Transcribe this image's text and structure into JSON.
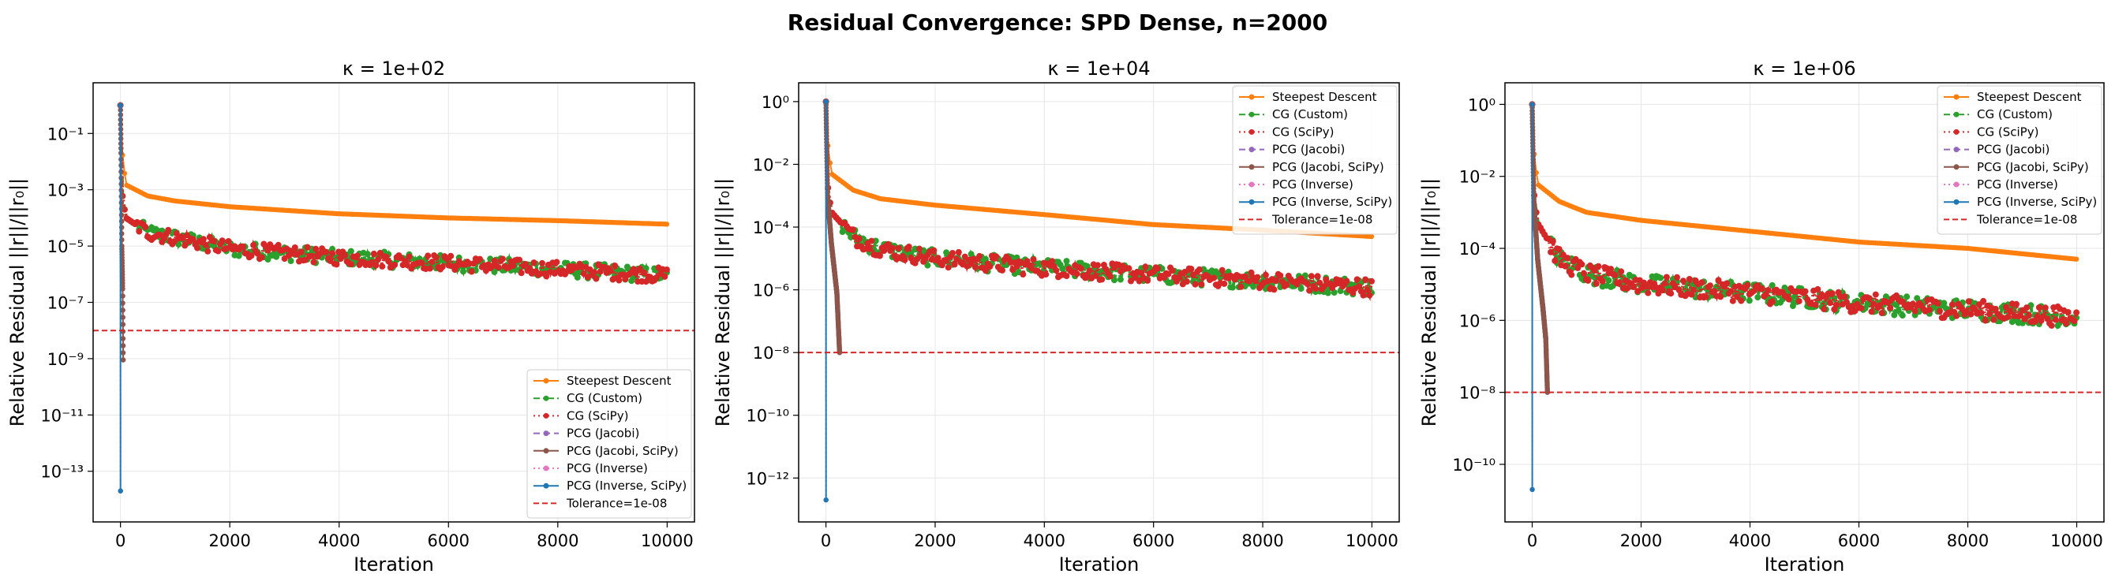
{
  "title": "Residual Convergence: SPD Dense, n=2000",
  "colors": {
    "steepest": "#ff7f0e",
    "cg_custom": "#2ca02c",
    "cg_scipy": "#d62728",
    "pcg_jacobi": "#9467bd",
    "pcg_jacobi_scipy": "#8c564b",
    "pcg_inverse": "#e377c2",
    "pcg_inverse_scipy": "#1f77b4",
    "tolerance": "#d62728",
    "grid": "#e6e6e6"
  },
  "chart_data": [
    {
      "type": "line",
      "title": "κ = 1e+02",
      "xlabel": "Iteration",
      "ylabel": "Relative Residual ||r||/||r₀||",
      "yscale": "log",
      "xlim": [
        -500,
        10500
      ],
      "ylim_log10": [
        -14.8,
        0.8
      ],
      "x_ticks": [
        0,
        2000,
        4000,
        6000,
        8000,
        10000
      ],
      "y_ticks_exp": [
        -13,
        -11,
        -9,
        -7,
        -5,
        -3,
        -1
      ],
      "grid": true,
      "legend_position": "lower-right",
      "tolerance": 1e-08,
      "series": [
        {
          "name": "Steepest Descent",
          "key": "steepest",
          "style": "solid",
          "marker": "circle",
          "iterations": 10000,
          "points": [
            [
              0,
              1
            ],
            [
              10,
              0.05
            ],
            [
              100,
              0.0015
            ],
            [
              500,
              0.0006
            ],
            [
              1000,
              0.0004
            ],
            [
              2000,
              0.00025
            ],
            [
              4000,
              0.00014
            ],
            [
              6000,
              0.0001
            ],
            [
              8000,
              8e-05
            ],
            [
              10000,
              6e-05
            ]
          ]
        },
        {
          "name": "CG (Custom)",
          "key": "cg_custom",
          "style": "dashdot",
          "marker": "circle",
          "iterations": 10000,
          "noisy": true,
          "points": [
            [
              0,
              1
            ],
            [
              20,
              0.001
            ],
            [
              100,
              0.0001
            ],
            [
              500,
              3e-05
            ],
            [
              1000,
              2e-05
            ],
            [
              2000,
              8e-06
            ],
            [
              4000,
              4e-06
            ],
            [
              6000,
              2.5e-06
            ],
            [
              8000,
              1.5e-06
            ],
            [
              10000,
              9e-07
            ]
          ]
        },
        {
          "name": "CG (SciPy)",
          "key": "cg_scipy",
          "style": "dotted",
          "marker": "circle",
          "iterations": 10000,
          "noisy": true,
          "points": [
            [
              0,
              1
            ],
            [
              20,
              0.001
            ],
            [
              100,
              0.0001
            ],
            [
              500,
              3e-05
            ],
            [
              1000,
              2e-05
            ],
            [
              2000,
              8e-06
            ],
            [
              4000,
              4e-06
            ],
            [
              6000,
              2.5e-06
            ],
            [
              8000,
              1.5e-06
            ],
            [
              10000,
              9e-07
            ]
          ]
        },
        {
          "name": "PCG (Jacobi)",
          "key": "pcg_jacobi",
          "style": "dashed",
          "marker": "circle",
          "iterations": 50,
          "points": [
            [
              0,
              1
            ],
            [
              10,
              0.02
            ],
            [
              25,
              1e-05
            ],
            [
              40,
              3e-07
            ],
            [
              50,
              9e-10
            ]
          ]
        },
        {
          "name": "PCG (Jacobi, SciPy)",
          "key": "pcg_jacobi_scipy",
          "style": "solid",
          "marker": "circle",
          "iterations": 50,
          "points": [
            [
              0,
              1
            ],
            [
              10,
              0.02
            ],
            [
              25,
              1e-05
            ],
            [
              40,
              3e-07
            ],
            [
              50,
              9e-10
            ]
          ]
        },
        {
          "name": "PCG (Inverse)",
          "key": "pcg_inverse",
          "style": "dotted",
          "marker": "circle",
          "iterations": 1,
          "points": [
            [
              0,
              1
            ],
            [
              1,
              2e-14
            ]
          ]
        },
        {
          "name": "PCG (Inverse, SciPy)",
          "key": "pcg_inverse_scipy",
          "style": "solid",
          "marker": "circle",
          "iterations": 1,
          "points": [
            [
              0,
              1
            ],
            [
              1,
              2e-14
            ]
          ]
        },
        {
          "name": "Tolerance=1e-08",
          "key": "tolerance",
          "style": "dashed",
          "marker": "none",
          "hline": 1e-08
        }
      ]
    },
    {
      "type": "line",
      "title": "κ = 1e+04",
      "xlabel": "Iteration",
      "ylabel": "Relative Residual ||r||/||r₀||",
      "yscale": "log",
      "xlim": [
        -500,
        10500
      ],
      "ylim_log10": [
        -13.4,
        0.6
      ],
      "x_ticks": [
        0,
        2000,
        4000,
        6000,
        8000,
        10000
      ],
      "y_ticks_exp": [
        -12,
        -10,
        -8,
        -6,
        -4,
        -2,
        0
      ],
      "grid": true,
      "legend_position": "upper-right",
      "tolerance": 1e-08,
      "series": [
        {
          "name": "Steepest Descent",
          "key": "steepest",
          "style": "solid",
          "marker": "circle",
          "iterations": 10000,
          "points": [
            [
              0,
              1
            ],
            [
              10,
              0.1
            ],
            [
              100,
              0.005
            ],
            [
              500,
              0.0015
            ],
            [
              1000,
              0.0008
            ],
            [
              2000,
              0.0005
            ],
            [
              4000,
              0.00025
            ],
            [
              6000,
              0.00012
            ],
            [
              8000,
              8e-05
            ],
            [
              10000,
              5e-05
            ]
          ]
        },
        {
          "name": "CG (Custom)",
          "key": "cg_custom",
          "style": "dashdot",
          "marker": "circle",
          "iterations": 10000,
          "noisy": true,
          "points": [
            [
              0,
              1
            ],
            [
              20,
              0.003
            ],
            [
              100,
              0.0003
            ],
            [
              500,
              5e-05
            ],
            [
              1000,
              2e-05
            ],
            [
              2000,
              1e-05
            ],
            [
              4000,
              5e-06
            ],
            [
              6000,
              3e-06
            ],
            [
              8000,
              2e-06
            ],
            [
              10000,
              1.2e-06
            ]
          ]
        },
        {
          "name": "CG (SciPy)",
          "key": "cg_scipy",
          "style": "dotted",
          "marker": "circle",
          "iterations": 10000,
          "noisy": true,
          "points": [
            [
              0,
              1
            ],
            [
              20,
              0.003
            ],
            [
              100,
              0.0003
            ],
            [
              500,
              5e-05
            ],
            [
              1000,
              2e-05
            ],
            [
              2000,
              1e-05
            ],
            [
              4000,
              5e-06
            ],
            [
              6000,
              3e-06
            ],
            [
              8000,
              2e-06
            ],
            [
              10000,
              1.2e-06
            ]
          ]
        },
        {
          "name": "PCG (Jacobi)",
          "key": "pcg_jacobi",
          "style": "dashed",
          "marker": "circle",
          "iterations": 250,
          "points": [
            [
              0,
              1
            ],
            [
              30,
              0.001
            ],
            [
              100,
              3e-05
            ],
            [
              200,
              8e-07
            ],
            [
              250,
              1e-08
            ]
          ]
        },
        {
          "name": "PCG (Jacobi, SciPy)",
          "key": "pcg_jacobi_scipy",
          "style": "solid",
          "marker": "circle",
          "iterations": 250,
          "points": [
            [
              0,
              1
            ],
            [
              30,
              0.001
            ],
            [
              100,
              3e-05
            ],
            [
              200,
              8e-07
            ],
            [
              250,
              1e-08
            ]
          ]
        },
        {
          "name": "PCG (Inverse)",
          "key": "pcg_inverse",
          "style": "dotted",
          "marker": "circle",
          "iterations": 1,
          "points": [
            [
              0,
              1
            ],
            [
              1,
              2e-13
            ]
          ]
        },
        {
          "name": "PCG (Inverse, SciPy)",
          "key": "pcg_inverse_scipy",
          "style": "solid",
          "marker": "circle",
          "iterations": 1,
          "points": [
            [
              0,
              1
            ],
            [
              1,
              2e-13
            ]
          ]
        },
        {
          "name": "Tolerance=1e-08",
          "key": "tolerance",
          "style": "dashed",
          "marker": "none",
          "hline": 1e-08
        }
      ]
    },
    {
      "type": "line",
      "title": "κ = 1e+06",
      "xlabel": "Iteration",
      "ylabel": "Relative Residual ||r||/||r₀||",
      "yscale": "log",
      "xlim": [
        -500,
        10500
      ],
      "ylim_log10": [
        -11.6,
        0.6
      ],
      "x_ticks": [
        0,
        2000,
        4000,
        6000,
        8000,
        10000
      ],
      "y_ticks_exp": [
        -10,
        -8,
        -6,
        -4,
        -2,
        0
      ],
      "grid": true,
      "legend_position": "upper-right",
      "tolerance": 1e-08,
      "series": [
        {
          "name": "Steepest Descent",
          "key": "steepest",
          "style": "solid",
          "marker": "circle",
          "iterations": 10000,
          "points": [
            [
              0,
              1
            ],
            [
              10,
              0.1
            ],
            [
              100,
              0.006
            ],
            [
              500,
              0.002
            ],
            [
              1000,
              0.001
            ],
            [
              2000,
              0.0006
            ],
            [
              4000,
              0.0003
            ],
            [
              6000,
              0.00015
            ],
            [
              8000,
              0.0001
            ],
            [
              10000,
              5e-05
            ]
          ]
        },
        {
          "name": "CG (Custom)",
          "key": "cg_custom",
          "style": "dashdot",
          "marker": "circle",
          "iterations": 10000,
          "noisy": true,
          "points": [
            [
              0,
              1
            ],
            [
              20,
              0.005
            ],
            [
              100,
              0.0005
            ],
            [
              500,
              5e-05
            ],
            [
              1000,
              2e-05
            ],
            [
              2000,
              1e-05
            ],
            [
              4000,
              6e-06
            ],
            [
              6000,
              3e-06
            ],
            [
              8000,
              2e-06
            ],
            [
              10000,
              1.2e-06
            ]
          ]
        },
        {
          "name": "CG (SciPy)",
          "key": "cg_scipy",
          "style": "dotted",
          "marker": "circle",
          "iterations": 10000,
          "noisy": true,
          "points": [
            [
              0,
              1
            ],
            [
              20,
              0.005
            ],
            [
              100,
              0.0005
            ],
            [
              500,
              5e-05
            ],
            [
              1000,
              2e-05
            ],
            [
              2000,
              1e-05
            ],
            [
              4000,
              6e-06
            ],
            [
              6000,
              3e-06
            ],
            [
              8000,
              2e-06
            ],
            [
              10000,
              1.2e-06
            ]
          ]
        },
        {
          "name": "PCG (Jacobi)",
          "key": "pcg_jacobi",
          "style": "dashed",
          "marker": "circle",
          "iterations": 280,
          "points": [
            [
              0,
              1
            ],
            [
              30,
              0.002
            ],
            [
              100,
              5e-05
            ],
            [
              200,
              2e-06
            ],
            [
              250,
              3e-07
            ],
            [
              280,
              1e-08
            ]
          ]
        },
        {
          "name": "PCG (Jacobi, SciPy)",
          "key": "pcg_jacobi_scipy",
          "style": "solid",
          "marker": "circle",
          "iterations": 280,
          "points": [
            [
              0,
              1
            ],
            [
              30,
              0.002
            ],
            [
              100,
              5e-05
            ],
            [
              200,
              2e-06
            ],
            [
              250,
              3e-07
            ],
            [
              280,
              1e-08
            ]
          ]
        },
        {
          "name": "PCG (Inverse)",
          "key": "pcg_inverse",
          "style": "dotted",
          "marker": "circle",
          "iterations": 1,
          "points": [
            [
              0,
              1
            ],
            [
              1,
              2e-11
            ]
          ]
        },
        {
          "name": "PCG (Inverse, SciPy)",
          "key": "pcg_inverse_scipy",
          "style": "solid",
          "marker": "circle",
          "iterations": 1,
          "points": [
            [
              0,
              1
            ],
            [
              1,
              2e-11
            ]
          ]
        },
        {
          "name": "Tolerance=1e-08",
          "key": "tolerance",
          "style": "dashed",
          "marker": "none",
          "hline": 1e-08
        }
      ]
    }
  ]
}
